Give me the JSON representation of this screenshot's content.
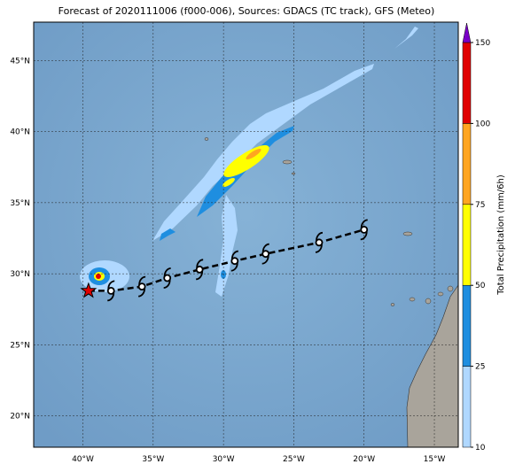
{
  "map": {
    "title": "Forecast of 2020111006 (f000-006), Sources: GDACS (TC track), GFS (Meteo)",
    "lon_range": [
      -43.5,
      -13.3
    ],
    "lat_range": [
      17.8,
      47.7
    ],
    "lon_ticks": [
      {
        "value": -40,
        "label": "40°W"
      },
      {
        "value": -35,
        "label": "35°W"
      },
      {
        "value": -30,
        "label": "30°W"
      },
      {
        "value": -25,
        "label": "25°W"
      },
      {
        "value": -20,
        "label": "20°W"
      },
      {
        "value": -15,
        "label": "15°W"
      }
    ],
    "lat_ticks": [
      {
        "value": 20,
        "label": "20°N"
      },
      {
        "value": 25,
        "label": "25°N"
      },
      {
        "value": 30,
        "label": "30°N"
      },
      {
        "value": 35,
        "label": "35°N"
      },
      {
        "value": 40,
        "label": "40°N"
      },
      {
        "value": 45,
        "label": "45°N"
      }
    ],
    "colorbar": {
      "label": "Total Precipitation (mm/6h)",
      "levels": [
        10,
        25,
        50,
        75,
        100,
        150
      ],
      "colors": [
        "#b0d8ff",
        "#1e8ee0",
        "#ffff00",
        "#ffa520",
        "#e00000"
      ],
      "extend_color": "#7a00c8"
    },
    "track": {
      "lon": [
        -38,
        -35.8,
        -34,
        -31.7,
        -29.2,
        -27,
        -23.2,
        -20
      ],
      "lat": [
        28.8,
        29.1,
        29.7,
        30.3,
        30.9,
        31.4,
        32.2,
        33.1
      ]
    },
    "genesis": {
      "lon": -39.6,
      "lat": 28.8
    }
  }
}
